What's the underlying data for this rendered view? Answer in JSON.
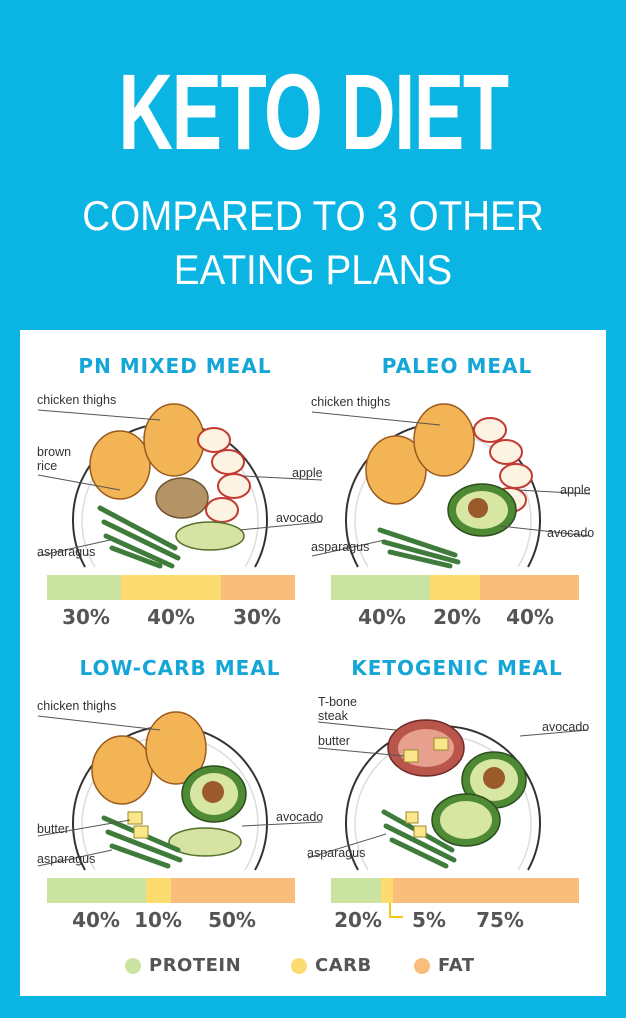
{
  "header": {
    "title": "KETO DIET",
    "subtitle_line1": "COMPARED TO 3 OTHER",
    "subtitle_line2": "EATING PLANS"
  },
  "colors": {
    "background": "#0ab4e3",
    "protein": "#cbe3a0",
    "carb": "#fcdc6e",
    "fat": "#f9bd7c",
    "title_accent": "#14a6d6"
  },
  "meals": [
    {
      "title": "PN MIXED MEAL",
      "labels": [
        "chicken thighs",
        "brown",
        "rice",
        "apple",
        "avocado",
        "asparagus"
      ],
      "protein_pct": 30,
      "carb_pct": 40,
      "fat_pct": 30,
      "pct_labels": [
        "30%",
        "40%",
        "30%"
      ]
    },
    {
      "title": "PALEO MEAL",
      "labels": [
        "chicken thighs",
        "apple",
        "avocado",
        "asparagus"
      ],
      "protein_pct": 40,
      "carb_pct": 20,
      "fat_pct": 40,
      "pct_labels": [
        "40%",
        "20%",
        "40%"
      ]
    },
    {
      "title": "LOW-CARB MEAL",
      "labels": [
        "chicken thighs",
        "avocado",
        "butter",
        "asparagus"
      ],
      "protein_pct": 40,
      "carb_pct": 10,
      "fat_pct": 50,
      "pct_labels": [
        "40%",
        "10%",
        "50%"
      ]
    },
    {
      "title": "KETOGENIC MEAL",
      "labels": [
        "T-bone",
        "steak",
        "butter",
        "avocado",
        "asparagus"
      ],
      "protein_pct": 20,
      "carb_pct": 5,
      "fat_pct": 75,
      "pct_labels": [
        "20%",
        "5%",
        "75%"
      ]
    }
  ],
  "legend": {
    "protein": "PROTEIN",
    "carb": "CARB",
    "fat": "FAT"
  }
}
